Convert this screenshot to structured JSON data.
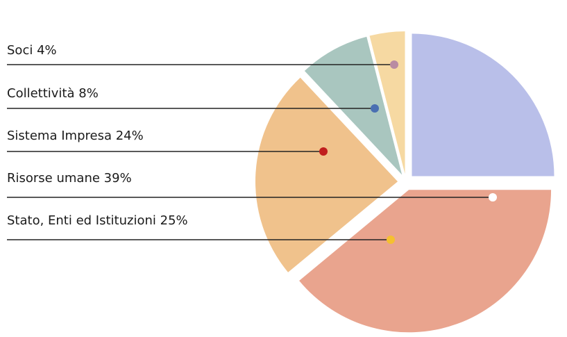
{
  "chart_data": {
    "type": "pie",
    "categories": [
      "Soci",
      "Collettività",
      "Sistema Impresa",
      "Risorse umane",
      "Stato, Enti ed Istituzioni"
    ],
    "values": [
      4,
      8,
      24,
      39,
      25
    ],
    "value_labels": [
      "4%",
      "8%",
      "24%",
      "39%",
      "25%"
    ],
    "colors": [
      "#f6d9a2",
      "#a9c6bf",
      "#f0c28c",
      "#e9a48e",
      "#b9bfe9"
    ],
    "marker_colors": [
      "#b98ba2",
      "#4a6fb2",
      "#c01e1e",
      "#ffffff",
      "#f5c030"
    ]
  }
}
